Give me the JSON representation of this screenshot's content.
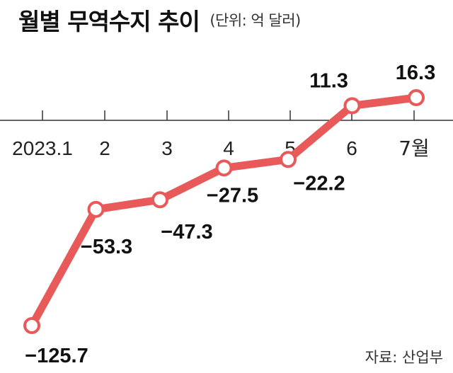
{
  "title": "월별 무역수지 추이",
  "unit_note": "(단위: 억 달러)",
  "source": "자료: 산업부",
  "colors": {
    "line": "#e85a5a",
    "marker_fill": "#ffffff",
    "axis": "#333333"
  },
  "chart_data": {
    "type": "line",
    "title": "월별 무역수지 추이",
    "unit": "억 달러",
    "categories": [
      "2023.1",
      "2",
      "3",
      "4",
      "5",
      "6",
      "7월"
    ],
    "series": [
      {
        "values": [
          -125.7,
          -53.3,
          -47.3,
          -27.5,
          -22.2,
          11.3,
          16.3
        ],
        "labels": [
          "−125.7",
          "−53.3",
          "−47.3",
          "−27.5",
          "−22.2",
          "11.3",
          "16.3"
        ]
      }
    ],
    "ylim": [
      -125.7,
      16.3
    ],
    "grid": false,
    "legend": "none"
  }
}
